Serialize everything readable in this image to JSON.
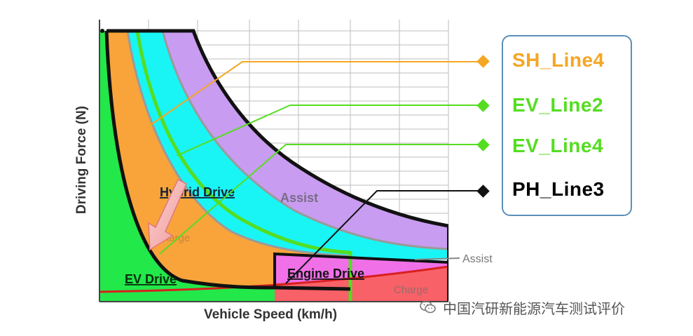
{
  "diagram": {
    "axis_x_label": "Vehicle Speed (km/h)",
    "axis_y_label": "Driving Force (N)",
    "region_labels": {
      "hybrid_drive": "Hybrid Drive",
      "assist_upper": "Assist",
      "charge_left": "Charge",
      "ev_drive": "EV Drive",
      "engine_drive": "Engine Drive",
      "charge_right": "Charge",
      "assist_outside": "Assist"
    }
  },
  "legend": {
    "items": [
      {
        "label": "SH_Line4",
        "color": "#f5a623"
      },
      {
        "label": "EV_Line2",
        "color": "#55dd22"
      },
      {
        "label": "EV_Line4",
        "color": "#55dd22"
      },
      {
        "label": "PH_Line3",
        "color": "#000000"
      }
    ]
  },
  "watermark": {
    "text": "中国汽研新能源汽车测试评价",
    "icon": "wechat-icon"
  },
  "colors": {
    "ev_region": "#22e84a",
    "orange_region": "#f8a43a",
    "cyan_region": "#19f5f5",
    "purple_region": "#c89cf0",
    "engine_region": "#f070e8",
    "charge_region": "#f86060",
    "grid": "#bdbdbd"
  }
}
